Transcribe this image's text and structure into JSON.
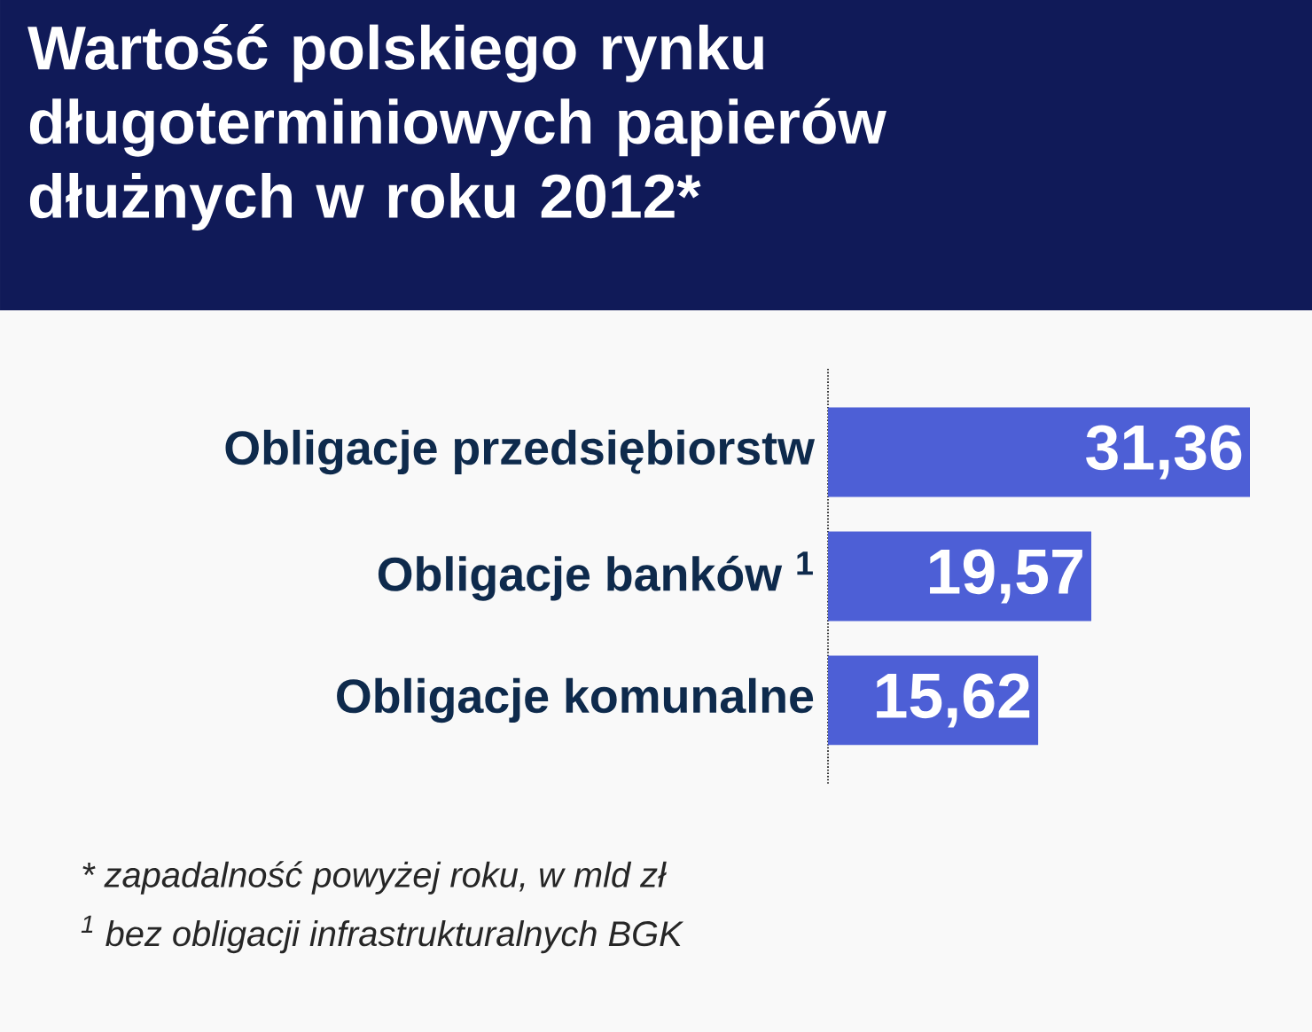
{
  "chart_data": {
    "type": "bar",
    "orientation": "horizontal",
    "title": "Wartość polskiego rynku długoterminiowych papierów dłużnych w roku 2012*",
    "categories": [
      "Obligacje przedsiębiorstw",
      "Obligacje banków $^{1}$",
      "Obligacje komunalne"
    ],
    "values": [
      31.36,
      19.57,
      15.62
    ],
    "value_labels": [
      "31,36",
      "19,57",
      "15,62"
    ],
    "color": "#4d5fd6",
    "annotations": [
      "* zapadalność powyżej roku, w mld zł",
      "$^{1}$ bez obligacji infrastrukturalnych BGK"
    ]
  }
}
